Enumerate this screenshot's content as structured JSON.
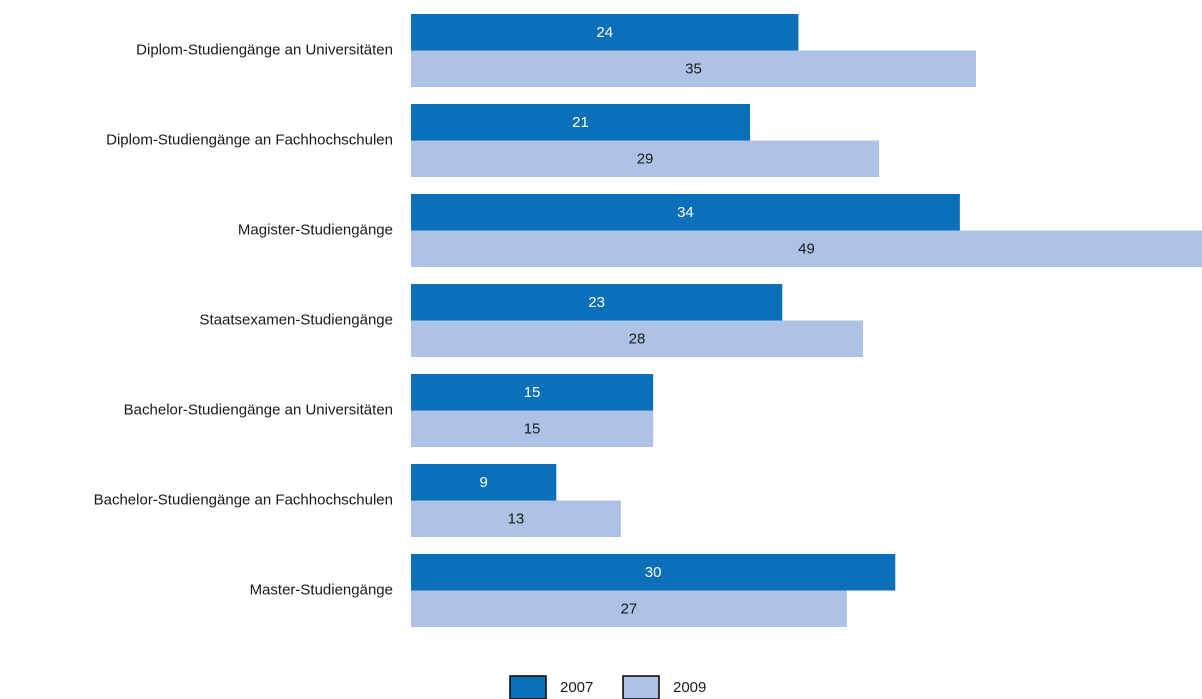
{
  "chart_data": {
    "type": "bar",
    "orientation": "horizontal",
    "categories": [
      "Diplom-Studiengänge an Universitäten",
      "Diplom-Studiengänge an Fachhochschulen",
      "Magister-Studiengänge",
      "Staatsexamen-Studiengänge",
      "Bachelor-Studiengänge an Universitäten",
      "Bachelor-Studiengänge an Fachhochschulen",
      "Master-Studiengänge"
    ],
    "series": [
      {
        "name": "2007",
        "color": "#0b6fba",
        "values": [
          24,
          21,
          34,
          23,
          15,
          9,
          30
        ]
      },
      {
        "name": "2009",
        "color": "#adc2e4",
        "values": [
          35,
          29,
          49,
          28,
          15,
          13,
          27
        ]
      }
    ],
    "xlim": [
      0,
      49
    ],
    "legend": "bottom"
  }
}
